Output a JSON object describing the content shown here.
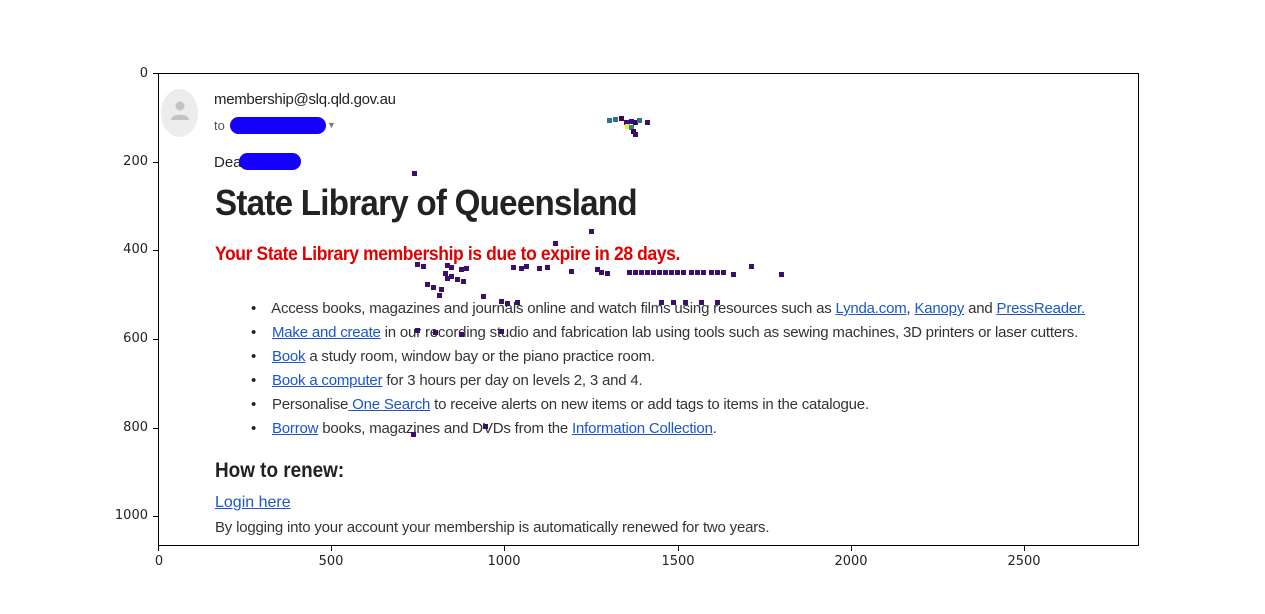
{
  "axes": {
    "y_ticks": [
      "0",
      "200",
      "400",
      "600",
      "800",
      "1000"
    ],
    "x_ticks": [
      "0",
      "500",
      "1000",
      "1500",
      "2000",
      "2500"
    ]
  },
  "email": {
    "sender": "membership@slq.qld.gov.au",
    "to_prefix": "to",
    "dear_prefix": "Dear",
    "heading": "State Library of Queensland",
    "warning": "Your State Library membership is due to expire in 28 days.",
    "benefits": [
      {
        "pre": "Access books, magazines and journals online and watch films using resources such as ",
        "link1": "Lynda.com",
        "sep1": ", ",
        "link2": "Kanopy",
        "sep2": " and ",
        "link3": "PressReader."
      },
      {
        "link": "Make and create",
        "post": " in our recording studio and fabrication lab using tools such as sewing machines, 3D printers or laser cutters."
      },
      {
        "link": "Book",
        "post": " a study room, window bay or the piano practice room."
      },
      {
        "link": "Book a computer",
        "post": " for 3 hours per day on levels 2, 3 and 4."
      },
      {
        "pre": "Personalise",
        "link": " One Search",
        "post": " to receive alerts on new items or add tags to items in the catalogue."
      },
      {
        "link": "Borrow",
        "mid": " books, magazines and DVDs from the ",
        "link2": "Information Collection",
        "post": "."
      }
    ],
    "renew_heading": "How to renew:",
    "login_link": "Login here",
    "renew_text": "By logging into your account your membership is automatically renewed for two years."
  },
  "colors": {
    "link": "#1a57c9",
    "warning": "#e00000",
    "redaction": "#1400ff",
    "noise": [
      "#3b0f70",
      "#2c728e",
      "#440154",
      "#fde725",
      "#21918c"
    ]
  },
  "icons": {
    "avatar": "person-icon",
    "caret": "caret-down-icon"
  }
}
